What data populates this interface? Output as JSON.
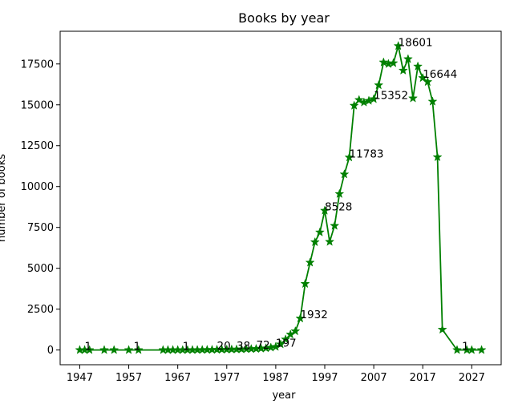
{
  "chart_data": {
    "type": "line",
    "title": "Books by year",
    "xlabel": "year",
    "ylabel": "number of books",
    "xlim": [
      1943,
      2033
    ],
    "ylim": [
      -900,
      19500
    ],
    "grid": false,
    "color": "#008000",
    "marker": "star",
    "x_ticks": [
      1947,
      1957,
      1967,
      1977,
      1987,
      1997,
      2007,
      2017,
      2027
    ],
    "y_ticks": [
      0,
      2500,
      5000,
      7500,
      10000,
      12500,
      15000,
      17500
    ],
    "y_tick_labels": [
      "0",
      "2500",
      "5000",
      "7500",
      "10000",
      "12500",
      "15000",
      "17500"
    ],
    "series": [
      {
        "x": [
          1947,
          1948,
          1949,
          1952,
          1954,
          1957,
          1959,
          1964,
          1965,
          1966,
          1967,
          1968,
          1969,
          1970,
          1971,
          1972,
          1973,
          1974,
          1975,
          1976,
          1977,
          1978,
          1979,
          1980,
          1981,
          1982,
          1983,
          1984,
          1985,
          1986,
          1987,
          1988,
          1989,
          1990,
          1991,
          1992,
          1993,
          1994,
          1995,
          1996,
          1997,
          1998,
          1999,
          2000,
          2001,
          2002,
          2003,
          2004,
          2005,
          2006,
          2007,
          2008,
          2009,
          2010,
          2011,
          2012,
          2013,
          2014,
          2015,
          2016,
          2017,
          2018,
          2019,
          2020,
          2021,
          2024,
          2026,
          2027,
          2029
        ],
        "y": [
          1,
          1,
          1,
          1,
          1,
          1,
          1,
          1,
          1,
          1,
          1,
          1,
          2,
          3,
          5,
          8,
          12,
          15,
          20,
          25,
          30,
          35,
          38,
          45,
          55,
          62,
          72,
          90,
          110,
          150,
          197,
          350,
          650,
          950,
          1150,
          1932,
          4050,
          5350,
          6600,
          7200,
          8528,
          6620,
          7600,
          9550,
          10750,
          11783,
          14950,
          15300,
          15150,
          15250,
          15352,
          16200,
          17600,
          17500,
          17550,
          18601,
          17100,
          17800,
          15400,
          17350,
          16644,
          16400,
          15200,
          11800,
          1250,
          1,
          1,
          1,
          1
        ]
      }
    ],
    "annotations": [
      {
        "x": 1948,
        "y": 1,
        "text": "1"
      },
      {
        "x": 1958,
        "y": 1,
        "text": "1"
      },
      {
        "x": 1968,
        "y": 1,
        "text": "1"
      },
      {
        "x": 1975,
        "y": 20,
        "text": "20"
      },
      {
        "x": 1979,
        "y": 38,
        "text": "38"
      },
      {
        "x": 1983,
        "y": 72,
        "text": "72"
      },
      {
        "x": 1987,
        "y": 197,
        "text": "197"
      },
      {
        "x": 1992,
        "y": 1932,
        "text": "1932"
      },
      {
        "x": 1997,
        "y": 8528,
        "text": "8528"
      },
      {
        "x": 2002,
        "y": 11783,
        "text": "11783"
      },
      {
        "x": 2007,
        "y": 15352,
        "text": "15352"
      },
      {
        "x": 2012,
        "y": 18601,
        "text": "18601"
      },
      {
        "x": 2017,
        "y": 16644,
        "text": "16644"
      },
      {
        "x": 2025,
        "y": 1,
        "text": "1"
      }
    ]
  }
}
